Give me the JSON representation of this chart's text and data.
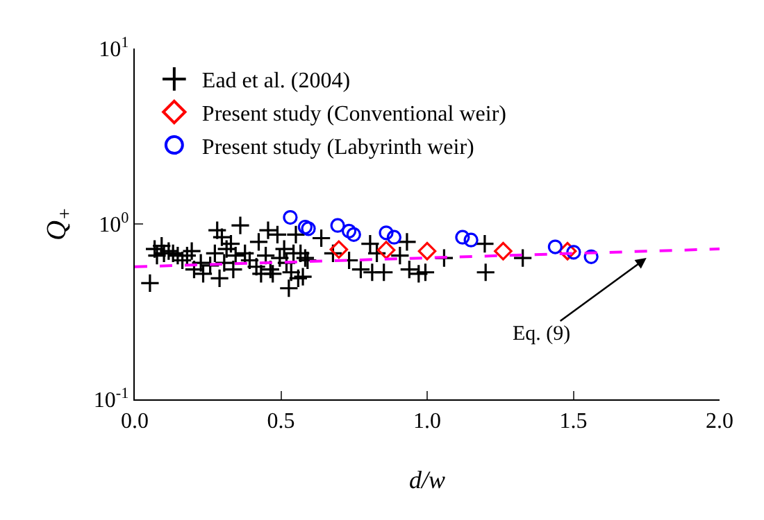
{
  "chart_data": {
    "type": "scatter",
    "xlabel": "d/w",
    "ylabel": "Q$_{+}$",
    "xlim": [
      0,
      2
    ],
    "xticks": [
      {
        "value": 0,
        "label": "0.0"
      },
      {
        "value": 0.5,
        "label": "0.5"
      },
      {
        "value": 1,
        "label": "1.0"
      },
      {
        "value": 1.5,
        "label": "1.5"
      },
      {
        "value": 2,
        "label": "2.0"
      }
    ],
    "ylim": [
      0.1,
      10
    ],
    "yticks": [
      {
        "value": 0.1,
        "label": "10$^{-1}$"
      },
      {
        "value": 1,
        "label": "10$^{0}$"
      },
      {
        "value": 10,
        "label": "10$^{1}$"
      }
    ],
    "log": true,
    "grid": false,
    "legend": "top left",
    "annotations": [
      {
        "text": "Eq. (9)",
        "x": 1.75,
        "y": 0.64
      }
    ],
    "series": [
      {
        "name": "Ead et al. (2004)",
        "color": "#000000",
        "marker": "cross",
        "x": [
          0.052,
          0.068,
          0.076,
          0.092,
          0.1,
          0.116,
          0.131,
          0.147,
          0.163,
          0.179,
          0.195,
          0.203,
          0.226,
          0.234,
          0.258,
          0.274,
          0.282,
          0.29,
          0.298,
          0.306,
          0.314,
          0.329,
          0.337,
          0.345,
          0.361,
          0.377,
          0.393,
          0.416,
          0.424,
          0.432,
          0.448,
          0.456,
          0.464,
          0.472,
          0.488,
          0.496,
          0.511,
          0.519,
          0.527,
          0.535,
          0.543,
          0.551,
          0.559,
          0.567,
          0.575,
          0.583,
          0.591,
          0.638,
          0.678,
          0.733,
          0.773,
          0.805,
          0.812,
          0.828,
          0.852,
          0.907,
          0.931,
          0.939,
          0.971,
          0.994,
          1.058,
          1.197,
          1.2,
          1.327
        ],
        "values": [
          0.46,
          0.72,
          0.66,
          0.75,
          0.68,
          0.7,
          0.68,
          0.66,
          0.62,
          0.66,
          0.7,
          0.55,
          0.6,
          0.52,
          0.58,
          0.68,
          0.92,
          0.49,
          0.84,
          0.6,
          0.72,
          0.77,
          0.55,
          0.66,
          0.98,
          0.68,
          0.62,
          0.57,
          0.79,
          0.52,
          0.66,
          0.92,
          0.55,
          0.52,
          0.87,
          0.64,
          0.72,
          0.6,
          0.43,
          0.53,
          0.68,
          0.87,
          0.49,
          0.68,
          0.5,
          0.64,
          0.62,
          0.83,
          0.68,
          0.62,
          0.55,
          0.77,
          0.53,
          0.68,
          0.53,
          0.66,
          0.79,
          0.55,
          0.52,
          0.53,
          0.64,
          0.77,
          0.53,
          0.64
        ]
      },
      {
        "name": "Present study (Conventional weir)",
        "color": "#ff0000",
        "marker": "diamond",
        "x": [
          0.698,
          0.86,
          1.0,
          1.26,
          1.48
        ],
        "values": [
          0.715,
          0.71,
          0.7,
          0.7,
          0.7
        ]
      },
      {
        "name": "Present study (Labyrinth weir)",
        "color": "#0000ff",
        "marker": "circle",
        "x": [
          0.532,
          0.583,
          0.594,
          0.694,
          0.733,
          0.749,
          0.86,
          0.887,
          1.121,
          1.15,
          1.438,
          1.501,
          1.561
        ],
        "values": [
          1.09,
          0.96,
          0.94,
          0.98,
          0.91,
          0.87,
          0.89,
          0.84,
          0.84,
          0.81,
          0.74,
          0.69,
          0.65
        ]
      },
      {
        "type": "line",
        "color": "#ff00ff",
        "line_style": "dashed",
        "marker": "none",
        "x": [
          0,
          2
        ],
        "values": [
          0.57,
          0.72
        ]
      }
    ]
  }
}
